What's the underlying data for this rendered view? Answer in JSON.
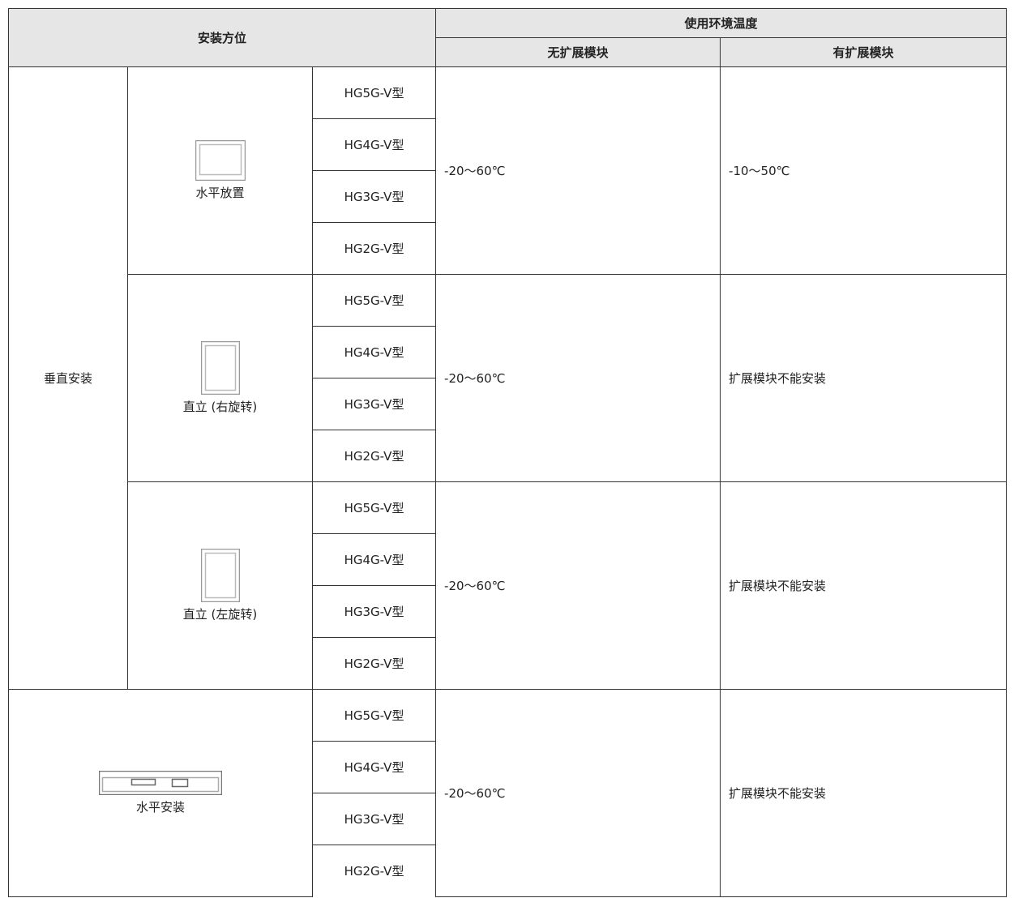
{
  "header": {
    "orientation": "安装方位",
    "temperature": "使用环境温度",
    "without_module": "无扩展模块",
    "with_module": "有扩展模块"
  },
  "sections": [
    {
      "mounting": "垂直安装",
      "orientations": [
        {
          "label": "水平放置",
          "models": [
            "HG5G-V型",
            "HG4G-V型",
            "HG3G-V型",
            "HG2G-V型"
          ],
          "without_module": "-20～60℃",
          "with_module": "-10～50℃"
        },
        {
          "label": "直立 (右旋转)",
          "models": [
            "HG5G-V型",
            "HG4G-V型",
            "HG3G-V型",
            "HG2G-V型"
          ],
          "without_module": "-20～60℃",
          "with_module": "扩展模块不能安装"
        },
        {
          "label": "直立 (左旋转)",
          "models": [
            "HG5G-V型",
            "HG4G-V型",
            "HG3G-V型",
            "HG2G-V型"
          ],
          "without_module": "-20～60℃",
          "with_module": "扩展模块不能安装"
        }
      ]
    },
    {
      "orientations": [
        {
          "label": "水平安装",
          "models": [
            "HG5G-V型",
            "HG4G-V型",
            "HG3G-V型",
            "HG2G-V型"
          ],
          "without_module": "-20～60℃",
          "with_module": "扩展模块不能安装"
        }
      ]
    }
  ]
}
